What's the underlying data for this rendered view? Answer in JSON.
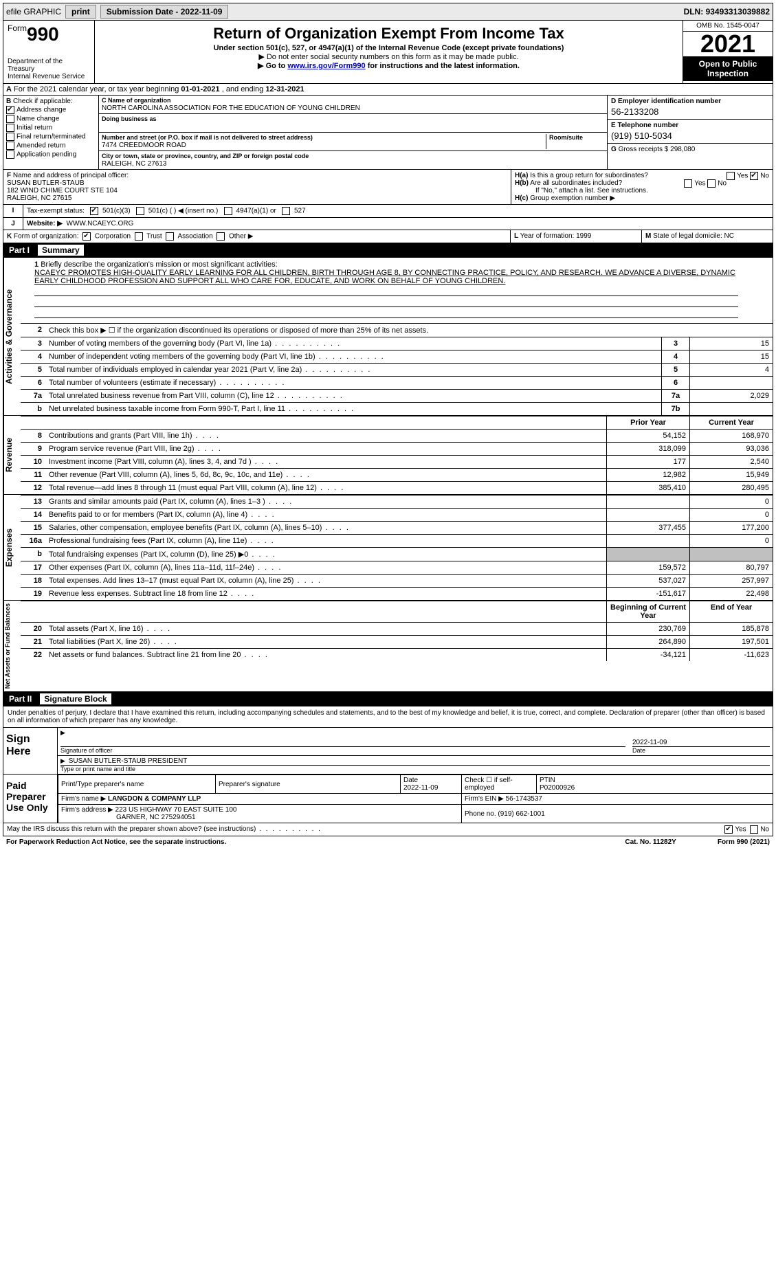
{
  "topbar": {
    "efile": "efile GRAPHIC",
    "print": "print",
    "sub_label": "Submission Date - ",
    "sub_date": "2022-11-09",
    "dln_label": "DLN: ",
    "dln": "93493313039882"
  },
  "header": {
    "form_word": "Form",
    "form_num": "990",
    "dept": "Department of the Treasury",
    "irs": "Internal Revenue Service",
    "title": "Return of Organization Exempt From Income Tax",
    "sub1": "Under section 501(c), 527, or 4947(a)(1) of the Internal Revenue Code (except private foundations)",
    "sub2": "▶ Do not enter social security numbers on this form as it may be made public.",
    "sub3_pre": "▶ Go to ",
    "sub3_link": "www.irs.gov/Form990",
    "sub3_post": " for instructions and the latest information.",
    "omb": "OMB No. 1545-0047",
    "year": "2021",
    "open": "Open to Public Inspection"
  },
  "row_a": {
    "label": "A",
    "text_pre": "For the 2021 calendar year, or tax year beginning ",
    "begin": "01-01-2021",
    "mid": " , and ending ",
    "end": "12-31-2021"
  },
  "col_b": {
    "label": "B",
    "intro": "Check if applicable:",
    "addr_change": "Address change",
    "name_change": "Name change",
    "initial": "Initial return",
    "final": "Final return/terminated",
    "amended": "Amended return",
    "app_pending": "Application pending"
  },
  "col_c": {
    "name_label": "C Name of organization",
    "name": "NORTH CAROLINA ASSOCIATION FOR THE EDUCATION OF YOUNG CHILDREN",
    "dba_label": "Doing business as",
    "dba": "",
    "street_label": "Number and street (or P.O. box if mail is not delivered to street address)",
    "room_label": "Room/suite",
    "street": "7474 CREEDMOOR ROAD",
    "city_label": "City or town, state or province, country, and ZIP or foreign postal code",
    "city": "RALEIGH, NC  27613"
  },
  "col_d": {
    "d_label": "D Employer identification number",
    "ein": "56-2133208",
    "e_label": "E Telephone number",
    "phone": "(919) 510-5034",
    "g_label": "G",
    "g_text": "Gross receipts $",
    "g_val": "298,080"
  },
  "col_f": {
    "label": "F",
    "text": "Name and address of principal officer:",
    "name": "SUSAN BUTLER-STAUB",
    "addr1": "182 WIND CHIME COURT STE 104",
    "addr2": "RALEIGH, NC  27615"
  },
  "col_h": {
    "ha_label": "H(a)",
    "ha_text": "Is this a group return for subordinates?",
    "hb_label": "H(b)",
    "hb_text": "Are all subordinates included?",
    "hb_note": "If \"No,\" attach a list. See instructions.",
    "hc_label": "H(c)",
    "hc_text": "Group exemption number ▶",
    "yes": "Yes",
    "no": "No"
  },
  "row_i": {
    "label": "I",
    "text": "Tax-exempt status:",
    "opt1": "501(c)(3)",
    "opt2": "501(c) (   ) ◀ (insert no.)",
    "opt3": "4947(a)(1) or",
    "opt4": "527"
  },
  "row_j": {
    "label": "J",
    "text": "Website: ▶",
    "val": "WWW.NCAEYC.ORG"
  },
  "row_k": {
    "label": "K",
    "text": "Form of organization:",
    "corp": "Corporation",
    "trust": "Trust",
    "assoc": "Association",
    "other": "Other ▶"
  },
  "row_l": {
    "l_label": "L",
    "l_text": "Year of formation:",
    "l_val": "1999",
    "m_label": "M",
    "m_text": "State of legal domicile:",
    "m_val": "NC"
  },
  "part1": {
    "partnum": "Part I",
    "title": "Summary"
  },
  "mission": {
    "num": "1",
    "label": "Briefly describe the organization's mission or most significant activities:",
    "text": "NCAEYC PROMOTES HIGH-QUALITY EARLY LEARNING FOR ALL CHILDREN, BIRTH THROUGH AGE 8, BY CONNECTING PRACTICE, POLICY, AND RESEARCH. WE ADVANCE A DIVERSE, DYNAMIC EARLY CHILDHOOD PROFESSION AND SUPPORT ALL WHO CARE FOR, EDUCATE, AND WORK ON BEHALF OF YOUNG CHILDREN."
  },
  "gov_rows": [
    {
      "n": "2",
      "desc": "Check this box ▶ ☐ if the organization discontinued its operations or disposed of more than 25% of its net assets.",
      "box": "",
      "val": ""
    },
    {
      "n": "3",
      "desc": "Number of voting members of the governing body (Part VI, line 1a)",
      "box": "3",
      "val": "15"
    },
    {
      "n": "4",
      "desc": "Number of independent voting members of the governing body (Part VI, line 1b)",
      "box": "4",
      "val": "15"
    },
    {
      "n": "5",
      "desc": "Total number of individuals employed in calendar year 2021 (Part V, line 2a)",
      "box": "5",
      "val": "4"
    },
    {
      "n": "6",
      "desc": "Total number of volunteers (estimate if necessary)",
      "box": "6",
      "val": ""
    },
    {
      "n": "7a",
      "desc": "Total unrelated business revenue from Part VIII, column (C), line 12",
      "box": "7a",
      "val": "2,029"
    },
    {
      "n": "b",
      "desc": "Net unrelated business taxable income from Form 990-T, Part I, line 11",
      "box": "7b",
      "val": ""
    }
  ],
  "two_col_header": {
    "prior": "Prior Year",
    "current": "Current Year"
  },
  "rev_rows": [
    {
      "n": "8",
      "desc": "Contributions and grants (Part VIII, line 1h)",
      "p": "54,152",
      "c": "168,970"
    },
    {
      "n": "9",
      "desc": "Program service revenue (Part VIII, line 2g)",
      "p": "318,099",
      "c": "93,036"
    },
    {
      "n": "10",
      "desc": "Investment income (Part VIII, column (A), lines 3, 4, and 7d )",
      "p": "177",
      "c": "2,540"
    },
    {
      "n": "11",
      "desc": "Other revenue (Part VIII, column (A), lines 5, 6d, 8c, 9c, 10c, and 11e)",
      "p": "12,982",
      "c": "15,949"
    },
    {
      "n": "12",
      "desc": "Total revenue—add lines 8 through 11 (must equal Part VIII, column (A), line 12)",
      "p": "385,410",
      "c": "280,495"
    }
  ],
  "exp_rows": [
    {
      "n": "13",
      "desc": "Grants and similar amounts paid (Part IX, column (A), lines 1–3 )",
      "p": "",
      "c": "0"
    },
    {
      "n": "14",
      "desc": "Benefits paid to or for members (Part IX, column (A), line 4)",
      "p": "",
      "c": "0"
    },
    {
      "n": "15",
      "desc": "Salaries, other compensation, employee benefits (Part IX, column (A), lines 5–10)",
      "p": "377,455",
      "c": "177,200"
    },
    {
      "n": "16a",
      "desc": "Professional fundraising fees (Part IX, column (A), line 11e)",
      "p": "",
      "c": "0"
    },
    {
      "n": "b",
      "desc": "Total fundraising expenses (Part IX, column (D), line 25) ▶0",
      "p": "shade",
      "c": "shade"
    },
    {
      "n": "17",
      "desc": "Other expenses (Part IX, column (A), lines 11a–11d, 11f–24e)",
      "p": "159,572",
      "c": "80,797"
    },
    {
      "n": "18",
      "desc": "Total expenses. Add lines 13–17 (must equal Part IX, column (A), line 25)",
      "p": "537,027",
      "c": "257,997"
    },
    {
      "n": "19",
      "desc": "Revenue less expenses. Subtract line 18 from line 12",
      "p": "-151,617",
      "c": "22,498"
    }
  ],
  "net_header": {
    "begin": "Beginning of Current Year",
    "end": "End of Year"
  },
  "net_rows": [
    {
      "n": "20",
      "desc": "Total assets (Part X, line 16)",
      "p": "230,769",
      "c": "185,878"
    },
    {
      "n": "21",
      "desc": "Total liabilities (Part X, line 26)",
      "p": "264,890",
      "c": "197,501"
    },
    {
      "n": "22",
      "desc": "Net assets or fund balances. Subtract line 21 from line 20",
      "p": "-34,121",
      "c": "-11,623"
    }
  ],
  "side_labels": {
    "gov": "Activities & Governance",
    "rev": "Revenue",
    "exp": "Expenses",
    "net": "Net Assets or Fund Balances"
  },
  "part2": {
    "partnum": "Part II",
    "title": "Signature Block",
    "declaration": "Under penalties of perjury, I declare that I have examined this return, including accompanying schedules and statements, and to the best of my knowledge and belief, it is true, correct, and complete. Declaration of preparer (other than officer) is based on all information of which preparer has any knowledge."
  },
  "sign": {
    "label": "Sign Here",
    "sig_label": "Signature of officer",
    "date_label": "Date",
    "date": "2022-11-09",
    "name": "SUSAN BUTLER-STAUB  PRESIDENT",
    "name_label": "Type or print name and title"
  },
  "prep": {
    "label": "Paid Preparer Use Only",
    "h1": "Print/Type preparer's name",
    "h2": "Preparer's signature",
    "h3": "Date",
    "h3v": "2022-11-09",
    "h4": "Check ☐ if self-employed",
    "h5": "PTIN",
    "h5v": "P02000926",
    "firm_label": "Firm's name    ▶",
    "firm": "LANGDON & COMPANY LLP",
    "ein_label": "Firm's EIN ▶",
    "ein": "56-1743537",
    "addr_label": "Firm's address ▶",
    "addr1": "223 US HIGHWAY 70 EAST SUITE 100",
    "addr2": "GARNER, NC  275294051",
    "phone_label": "Phone no.",
    "phone": "(919) 662-1001"
  },
  "footer": {
    "discuss": "May the IRS discuss this return with the preparer shown above? (see instructions)",
    "yes": "Yes",
    "no": "No",
    "paperwork": "For Paperwork Reduction Act Notice, see the separate instructions.",
    "cat": "Cat. No. 11282Y",
    "form": "Form 990 (2021)"
  }
}
